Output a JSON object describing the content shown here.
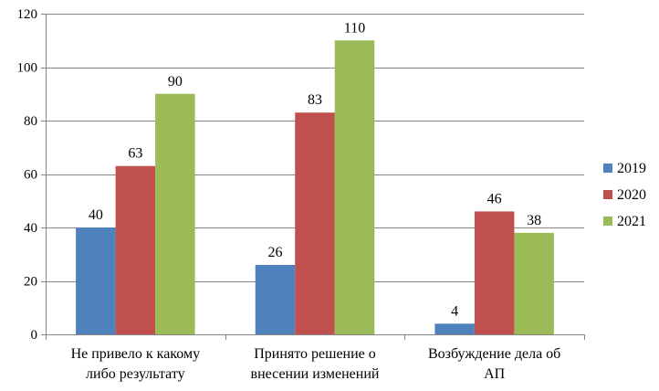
{
  "chart_data": {
    "type": "bar",
    "categories": [
      [
        "Не привело к какому",
        "либо результату"
      ],
      [
        "Принято решение о",
        "внесении изменений"
      ],
      [
        "Возбуждение дела об",
        "АП"
      ]
    ],
    "series": [
      {
        "name": "2019",
        "color": "#4F81BD",
        "values": [
          40,
          26,
          4
        ]
      },
      {
        "name": "2020",
        "color": "#C0504D",
        "values": [
          63,
          83,
          46
        ]
      },
      {
        "name": "2021",
        "color": "#9BBB59",
        "values": [
          90,
          110,
          38
        ]
      }
    ],
    "ylim": [
      0,
      120
    ],
    "yticks": [
      0,
      20,
      40,
      60,
      80,
      100,
      120
    ],
    "grid": true,
    "legend_position": "right"
  }
}
